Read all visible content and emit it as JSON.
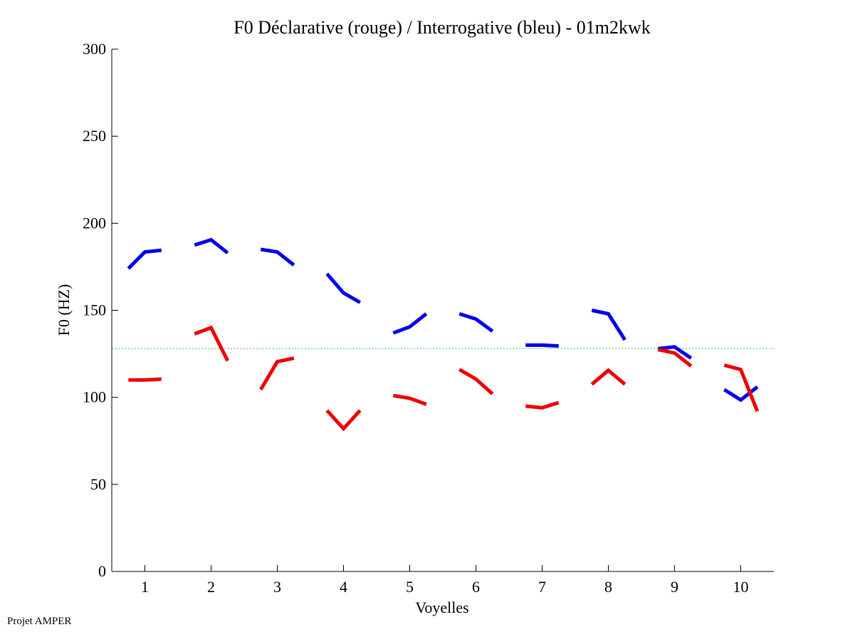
{
  "chart_data": {
    "type": "line",
    "title": "F0 Déclarative (rouge) / Interrogative (bleu) - 01m2kwk",
    "xlabel": "Voyelles",
    "ylabel": "F0 (HZ)",
    "xlim": [
      0.5,
      10.5
    ],
    "ylim": [
      0,
      300
    ],
    "xticks": [
      1,
      2,
      3,
      4,
      5,
      6,
      7,
      8,
      9,
      10
    ],
    "yticks": [
      0,
      50,
      100,
      150,
      200,
      250,
      300
    ],
    "grid": false,
    "reference_line": {
      "y": 128,
      "color": "#33cc33",
      "style": "dotted"
    },
    "series": [
      {
        "color": "#0000ee",
        "segments": [
          [
            [
              0.75,
              174
            ],
            [
              1.0,
              183.5
            ],
            [
              1.25,
              184.5
            ]
          ],
          [
            [
              1.75,
              187.5
            ],
            [
              2.0,
              190.5
            ],
            [
              2.25,
              183
            ]
          ],
          [
            [
              2.75,
              185
            ],
            [
              3.0,
              183.5
            ],
            [
              3.25,
              176
            ]
          ],
          [
            [
              3.75,
              171
            ],
            [
              4.0,
              160
            ],
            [
              4.25,
              154.5
            ]
          ],
          [
            [
              4.75,
              137
            ],
            [
              5.0,
              140.5
            ],
            [
              5.25,
              148
            ]
          ],
          [
            [
              5.75,
              148
            ],
            [
              6.0,
              145
            ],
            [
              6.25,
              138
            ]
          ],
          [
            [
              6.75,
              130
            ],
            [
              7.0,
              130
            ],
            [
              7.25,
              129.5
            ]
          ],
          [
            [
              7.75,
              150
            ],
            [
              8.0,
              148
            ],
            [
              8.25,
              133
            ]
          ],
          [
            [
              8.75,
              128
            ],
            [
              9.0,
              129
            ],
            [
              9.25,
              122.5
            ]
          ],
          [
            [
              9.75,
              104.5
            ],
            [
              10.0,
              98.5
            ],
            [
              10.25,
              106
            ]
          ]
        ]
      },
      {
        "color": "#ee0000",
        "segments": [
          [
            [
              0.75,
              110
            ],
            [
              1.0,
              110
            ],
            [
              1.25,
              110.5
            ]
          ],
          [
            [
              1.75,
              136.5
            ],
            [
              2.0,
              140
            ],
            [
              2.25,
              121
            ]
          ],
          [
            [
              2.75,
              104.5
            ],
            [
              3.0,
              120.5
            ],
            [
              3.25,
              122.5
            ]
          ],
          [
            [
              3.75,
              92.5
            ],
            [
              4.0,
              82
            ],
            [
              4.25,
              92.5
            ]
          ],
          [
            [
              4.75,
              101
            ],
            [
              5.0,
              99.5
            ],
            [
              5.25,
              96
            ]
          ],
          [
            [
              5.75,
              116
            ],
            [
              6.0,
              110.5
            ],
            [
              6.25,
              102
            ]
          ],
          [
            [
              6.75,
              95
            ],
            [
              7.0,
              94
            ],
            [
              7.25,
              97
            ]
          ],
          [
            [
              7.75,
              107.5
            ],
            [
              8.0,
              115.5
            ],
            [
              8.25,
              107.5
            ]
          ],
          [
            [
              8.75,
              127.5
            ],
            [
              9.0,
              125.5
            ],
            [
              9.25,
              118
            ]
          ],
          [
            [
              9.75,
              118.5
            ],
            [
              10.0,
              116
            ],
            [
              10.25,
              92
            ]
          ]
        ]
      }
    ]
  },
  "footer": "Projet AMPER"
}
